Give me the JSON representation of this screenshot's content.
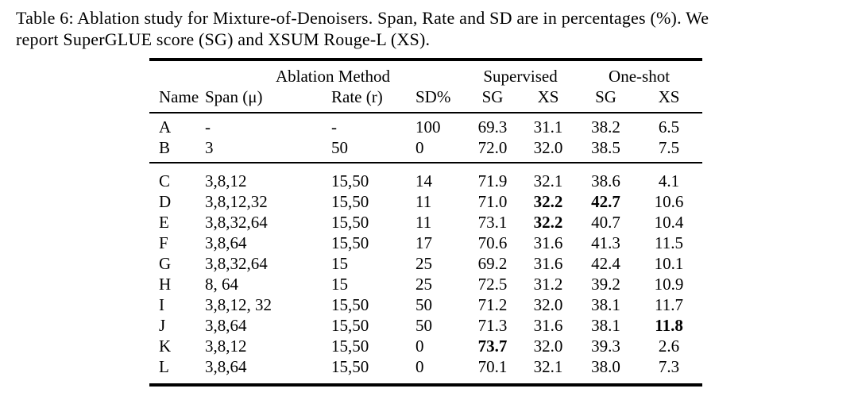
{
  "page": {
    "background_color": "#ffffff",
    "text_color": "#000000"
  },
  "caption": {
    "lines": [
      "Table 6: Ablation study for Mixture-of-Denoisers. Span, Rate and SD are in percentages (%). We",
      "report SuperGLUE score (SG) and XSUM Rouge-L (XS)."
    ]
  },
  "table": {
    "group_headers": [
      {
        "label": "",
        "span": 1
      },
      {
        "label": "Ablation Method",
        "span": 3
      },
      {
        "label": "Supervised",
        "span": 2
      },
      {
        "label": "One-shot",
        "span": 2
      }
    ],
    "column_headers": [
      "Name",
      "Span (μ)",
      "Rate (r)",
      "SD%",
      "SG",
      "XS",
      "SG",
      "XS"
    ],
    "sections": [
      {
        "rows": [
          {
            "cells": [
              "A",
              "-",
              "-",
              "100",
              "69.3",
              "31.1",
              "38.2",
              "6.5"
            ],
            "bold_cols": []
          },
          {
            "cells": [
              "B",
              "3",
              "50",
              "0",
              "72.0",
              "32.0",
              "38.5",
              "7.5"
            ],
            "bold_cols": []
          }
        ]
      },
      {
        "rows": [
          {
            "cells": [
              "C",
              "3,8,12",
              "15,50",
              "14",
              "71.9",
              "32.1",
              "38.6",
              "4.1"
            ],
            "bold_cols": []
          },
          {
            "cells": [
              "D",
              "3,8,12,32",
              "15,50",
              "11",
              "71.0",
              "32.2",
              "42.7",
              "10.6"
            ],
            "bold_cols": [
              5,
              6
            ]
          },
          {
            "cells": [
              "E",
              "3,8,32,64",
              "15,50",
              "11",
              "73.1",
              "32.2",
              "40.7",
              "10.4"
            ],
            "bold_cols": [
              5
            ]
          },
          {
            "cells": [
              "F",
              "3,8,64",
              "15,50",
              "17",
              "70.6",
              "31.6",
              "41.3",
              "11.5"
            ],
            "bold_cols": []
          },
          {
            "cells": [
              "G",
              "3,8,32,64",
              "15",
              "25",
              "69.2",
              "31.6",
              "42.4",
              "10.1"
            ],
            "bold_cols": []
          },
          {
            "cells": [
              "H",
              "8, 64",
              "15",
              "25",
              "72.5",
              "31.2",
              "39.2",
              "10.9"
            ],
            "bold_cols": []
          },
          {
            "cells": [
              "I",
              "3,8,12, 32",
              "15,50",
              "50",
              "71.2",
              "32.0",
              "38.1",
              "11.7"
            ],
            "bold_cols": []
          },
          {
            "cells": [
              "J",
              "3,8,64",
              "15,50",
              "50",
              "71.3",
              "31.6",
              "38.1",
              "11.8"
            ],
            "bold_cols": [
              7
            ]
          },
          {
            "cells": [
              "K",
              "3,8,12",
              "15,50",
              "0",
              "73.7",
              "32.0",
              "39.3",
              "2.6"
            ],
            "bold_cols": [
              4
            ]
          },
          {
            "cells": [
              "L",
              "3,8,64",
              "15,50",
              "0",
              "70.1",
              "32.1",
              "38.0",
              "7.3"
            ],
            "bold_cols": []
          }
        ]
      }
    ]
  }
}
